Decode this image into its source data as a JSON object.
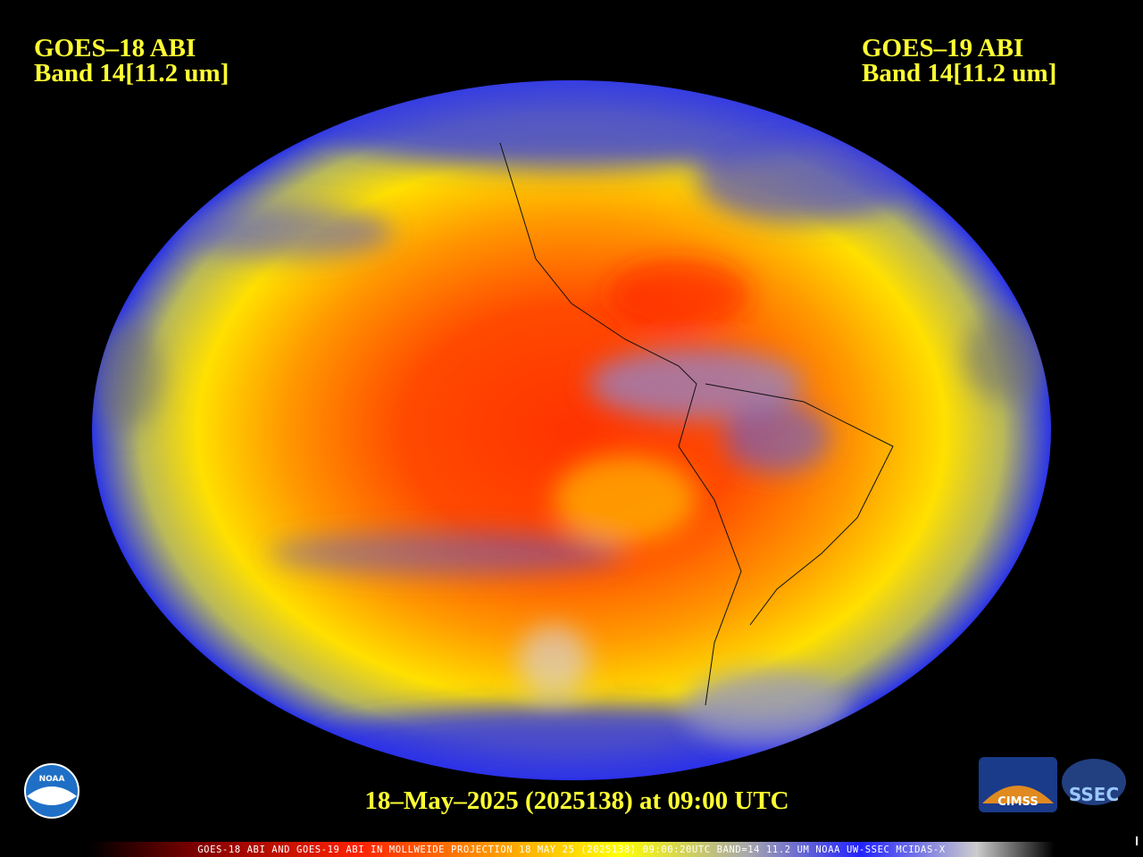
{
  "header": {
    "left": {
      "line1": "GOES–18 ABI",
      "line2": "Band 14[11.2 um]"
    },
    "right": {
      "line1": "GOES–19 ABI",
      "line2": "Band 14[11.2 um]"
    }
  },
  "timestamp": "18–May–2025 (2025138) at 09:00 UTC",
  "footer": "GOES-18 ABI AND GOES-19 ABI IN MOLLWEIDE PROJECTION 18 MAY 25 (2025138) 09:00:20UTC BAND=14 11.2 UM NOAA UW-SSEC MCIDAS-X",
  "logos": {
    "noaa": "NOAA",
    "cimss": "CIMSS",
    "ssec": "SSEC"
  }
}
